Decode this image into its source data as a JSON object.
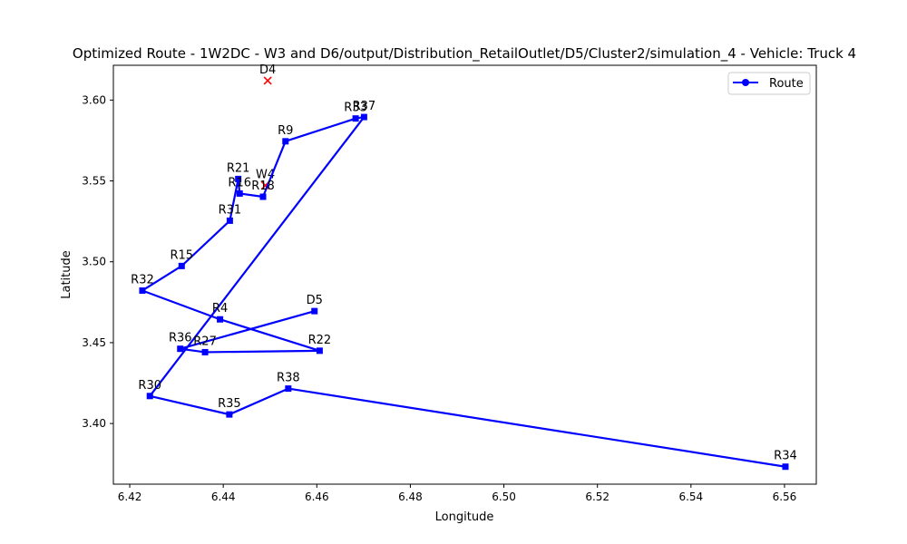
{
  "chart_data": {
    "type": "line",
    "title": "Optimized Route - 1W2DC - W3 and D6/output/Distribution_RetailOutlet/D5/Cluster2/simulation_4 - Vehicle: Truck 4",
    "xlabel": "Longitude",
    "ylabel": "Latitude",
    "xlim": [
      6.4165,
      6.5668
    ],
    "ylim": [
      3.3625,
      3.6215
    ],
    "xticks": [
      "6.42",
      "6.44",
      "6.46",
      "6.48",
      "6.50",
      "6.52",
      "6.54",
      "6.56"
    ],
    "yticks": [
      "3.40",
      "3.45",
      "3.50",
      "3.55",
      "3.60"
    ],
    "legend": {
      "position": "top-right",
      "entries": [
        "Route"
      ]
    },
    "series": [
      {
        "name": "Route",
        "color": "#0000ff",
        "marker": "square",
        "points": [
          {
            "label": "D5",
            "x": 6.4595,
            "y": 3.4695
          },
          {
            "label": "R36",
            "x": 6.4308,
            "y": 3.4462
          },
          {
            "label": "R27",
            "x": 6.4361,
            "y": 3.4441
          },
          {
            "label": "R22",
            "x": 6.4606,
            "y": 3.445
          },
          {
            "label": "R4",
            "x": 6.4393,
            "y": 3.4644
          },
          {
            "label": "R32",
            "x": 6.4227,
            "y": 3.4822
          },
          {
            "label": "R15",
            "x": 6.4311,
            "y": 3.4974
          },
          {
            "label": "R31",
            "x": 6.4414,
            "y": 3.5254
          },
          {
            "label": "R21",
            "x": 6.4432,
            "y": 3.5512
          },
          {
            "label": "R16",
            "x": 6.4435,
            "y": 3.5422
          },
          {
            "label": "R18",
            "x": 6.4485,
            "y": 3.5402
          },
          {
            "label": "R9",
            "x": 6.4533,
            "y": 3.5745
          },
          {
            "label": "R33",
            "x": 6.4683,
            "y": 3.5886
          },
          {
            "label": "R37",
            "x": 6.4701,
            "y": 3.5895
          },
          {
            "label": "R30",
            "x": 6.4243,
            "y": 3.417
          },
          {
            "label": "R35",
            "x": 6.4413,
            "y": 3.4056
          },
          {
            "label": "R38",
            "x": 6.4539,
            "y": 3.4216
          },
          {
            "label": "R34",
            "x": 6.5602,
            "y": 3.3733
          }
        ]
      }
    ],
    "extra_points": [
      {
        "label": "D4",
        "x": 6.4495,
        "y": 3.612,
        "marker": "x",
        "color": "#ff0000"
      },
      {
        "label": "W4",
        "x": 6.449,
        "y": 3.5472,
        "marker": "x",
        "color": "#ff0000"
      }
    ]
  }
}
